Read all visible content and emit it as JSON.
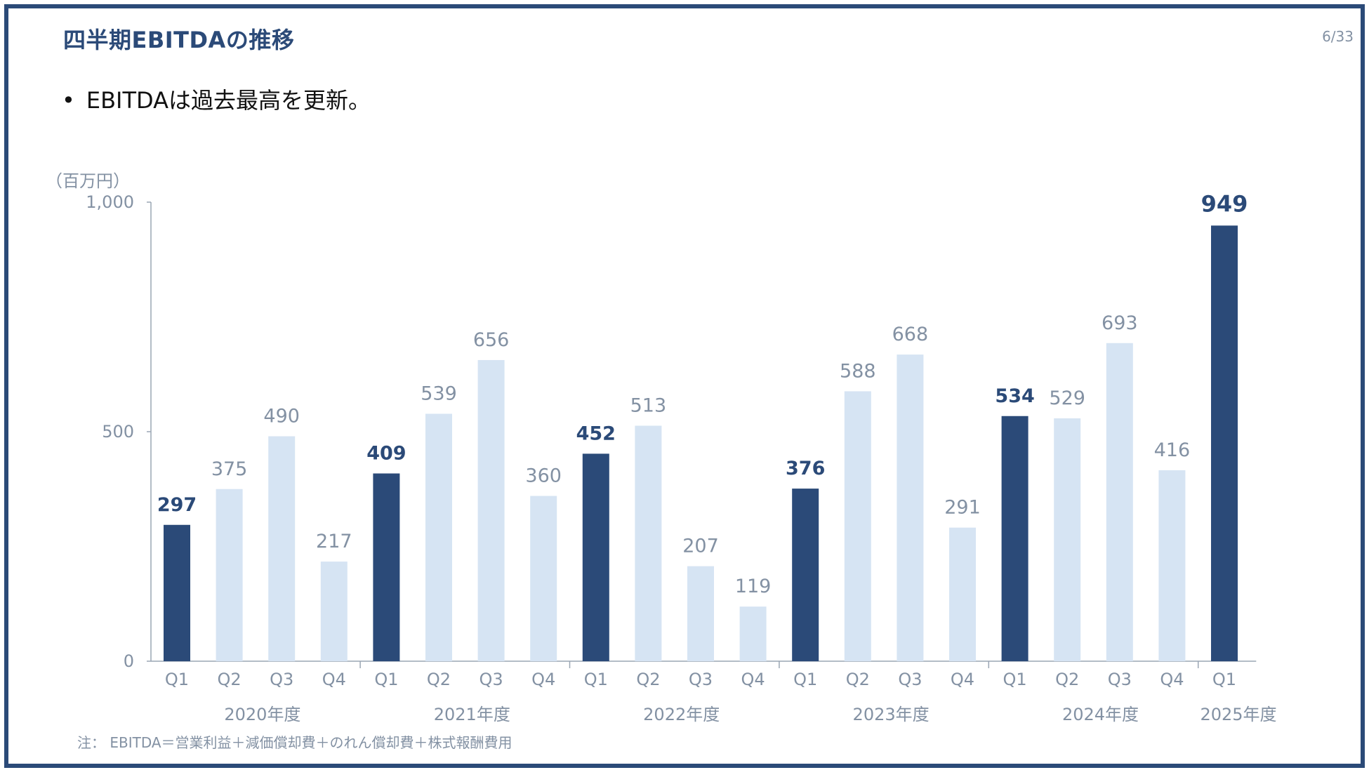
{
  "header": {
    "title": "四半期EBITDAの推移",
    "page": "6/33"
  },
  "bullets": [
    "EBITDAは過去最高を更新。"
  ],
  "footnote": "注： EBITDA＝営業利益＋減価償却費＋のれん償却費＋株式報酬費用",
  "colors": {
    "primary": "#2b4a78",
    "light": "#d6e4f3",
    "muted": "#8391a3",
    "axis": "#9aa6b4"
  },
  "chart_data": {
    "type": "bar",
    "unit_label": "（百万円）",
    "ylim": [
      0,
      1000
    ],
    "yticks": [
      0,
      500,
      1000
    ],
    "ytick_labels": [
      "0",
      "500",
      "1,000"
    ],
    "grid": false,
    "legend": "none",
    "categories": [
      "Q1",
      "Q2",
      "Q3",
      "Q4",
      "Q1",
      "Q2",
      "Q3",
      "Q4",
      "Q1",
      "Q2",
      "Q3",
      "Q4",
      "Q1",
      "Q2",
      "Q3",
      "Q4",
      "Q1",
      "Q2",
      "Q3",
      "Q4",
      "Q1"
    ],
    "values": [
      297,
      375,
      490,
      217,
      409,
      539,
      656,
      360,
      452,
      513,
      207,
      119,
      376,
      588,
      668,
      291,
      534,
      529,
      693,
      416,
      949
    ],
    "highlight": [
      true,
      false,
      false,
      false,
      true,
      false,
      false,
      false,
      true,
      false,
      false,
      false,
      true,
      false,
      false,
      false,
      true,
      false,
      false,
      false,
      true
    ],
    "groups": [
      {
        "label": "2020年度",
        "start": 0,
        "end": 3
      },
      {
        "label": "2021年度",
        "start": 4,
        "end": 7
      },
      {
        "label": "2022年度",
        "start": 8,
        "end": 11
      },
      {
        "label": "2023年度",
        "start": 12,
        "end": 15
      },
      {
        "label": "2024年度",
        "start": 16,
        "end": 19
      },
      {
        "label": "2025年度",
        "start": 20,
        "end": 20
      }
    ]
  }
}
